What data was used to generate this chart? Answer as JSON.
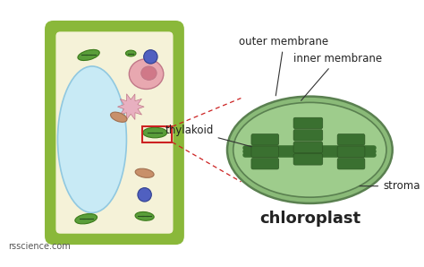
{
  "bg_color": "#ffffff",
  "cell_wall_color": "#8ab83a",
  "cell_inner_fill": "#f5f2d8",
  "vacuole_fill": "#c8eaf5",
  "vacuole_edge": "#90c8e0",
  "chloroplast_green": "#5a9e3a",
  "chloroplast_edge": "#3a7a1a",
  "chloro_outer_fill": "#8aba78",
  "chloro_inner_fill": "#9ecc8c",
  "thylakoid_fill": "#3a7030",
  "thylakoid_edge": "#2a5020",
  "mito_fill": "#c8906a",
  "mito_edge": "#a07050",
  "nucleus_fill": "#e8a8b0",
  "nucleus_edge": "#c07888",
  "nucleolus_fill": "#d07888",
  "blue_fill": "#5060c0",
  "blue_edge": "#304090",
  "dashed_color": "#cc2222",
  "annotation_color": "#222222",
  "rsscience_text": "rsscience.com",
  "chloroplast_label": "chloroplast",
  "outer_mem_label": "outer membrane",
  "inner_mem_label": "inner membrane",
  "thylakoid_label": "thylakoid",
  "stroma_label": "stroma",
  "pink_star_fill": "#e8b0c0",
  "pink_star_edge": "#c07888"
}
